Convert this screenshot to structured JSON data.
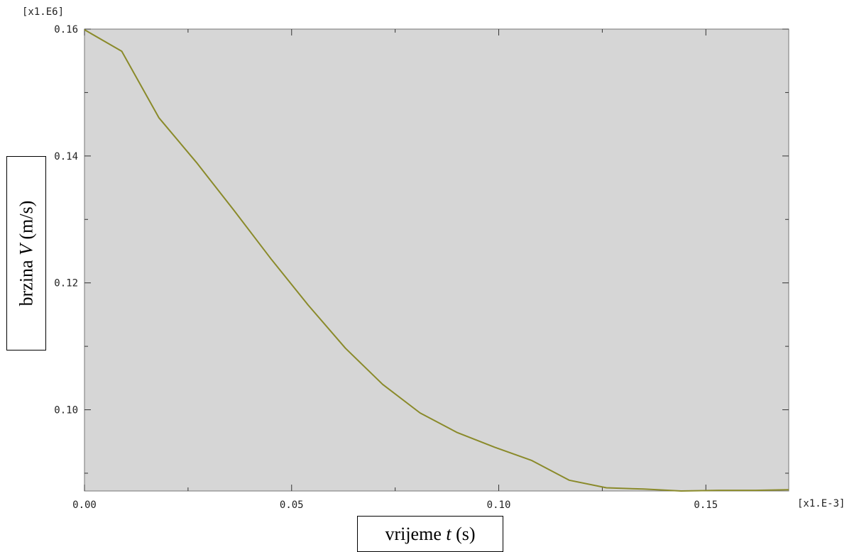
{
  "chart_data": {
    "type": "line",
    "x_multiplier": "[x1.E-3]",
    "y_multiplier": "[x1.E6]",
    "xlim": [
      0,
      0.17
    ],
    "ylim": [
      0.0872,
      0.16
    ],
    "x_ticks": [
      0.0,
      0.05,
      0.1,
      0.15
    ],
    "x_tick_labels": [
      "0.00",
      "0.05",
      "0.10",
      "0.15"
    ],
    "y_ticks": [
      0.1,
      0.12,
      0.14,
      0.16
    ],
    "y_tick_labels": [
      "0.10",
      "0.12",
      "0.14",
      "0.16"
    ],
    "xlabel": {
      "prefix": "vrijeme ",
      "var": "t",
      "suffix": " (s)"
    },
    "ylabel": {
      "prefix": "brzina ",
      "var": "V",
      "suffix": " (m/s)"
    },
    "grid": false,
    "plot_background": "#d6d6d6",
    "line_color": "#8a8a2a",
    "series": [
      {
        "x": [
          0.0,
          0.009,
          0.018,
          0.027,
          0.036,
          0.045,
          0.054,
          0.063,
          0.072,
          0.081,
          0.09,
          0.099,
          0.108,
          0.117,
          0.126,
          0.135,
          0.144,
          0.153,
          0.162,
          0.17
        ],
        "y": [
          0.1599,
          0.1565,
          0.146,
          0.139,
          0.1315,
          0.1238,
          0.1165,
          0.1097,
          0.104,
          0.0995,
          0.0964,
          0.0941,
          0.092,
          0.0889,
          0.0877,
          0.0875,
          0.0872,
          0.0873,
          0.0873,
          0.0874
        ]
      }
    ]
  }
}
